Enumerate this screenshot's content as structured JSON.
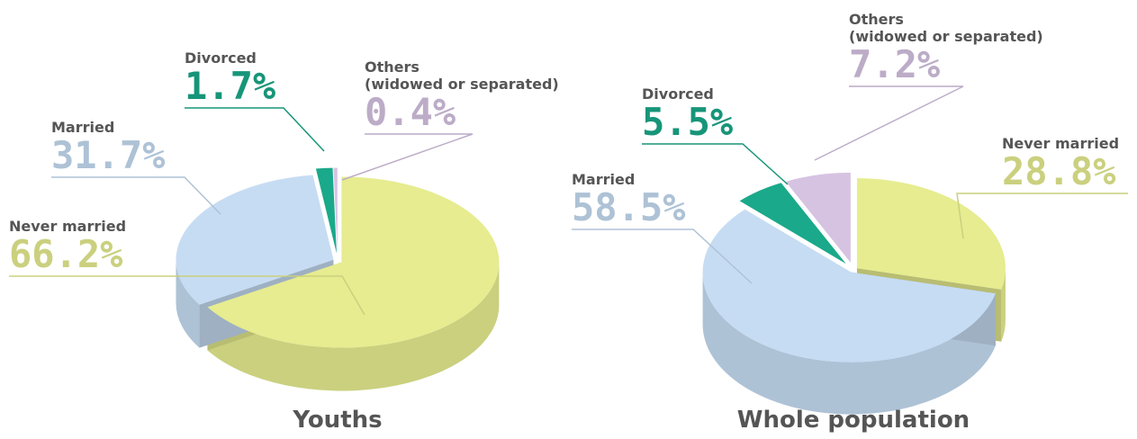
{
  "chart_data": [
    {
      "type": "pie",
      "title": "Youths",
      "categories": [
        "Never married",
        "Married",
        "Divorced",
        "Others\n(widowed or separated)"
      ],
      "values": [
        66.2,
        31.7,
        1.7,
        0.4
      ],
      "value_labels": [
        "66.2%",
        "31.7%",
        "1.7%",
        "0.4%"
      ],
      "colors": [
        "#e6ec8f",
        "#c6dcf3",
        "#1aa98a",
        "#d6c3e2"
      ]
    },
    {
      "type": "pie",
      "title": "Whole population",
      "categories": [
        "Never married",
        "Married",
        "Divorced",
        "Others\n(widowed or separated)"
      ],
      "values": [
        28.8,
        58.5,
        5.5,
        7.2
      ],
      "value_labels": [
        "28.8%",
        "58.5%",
        "5.5%",
        "7.2%"
      ],
      "colors": [
        "#e6ec8f",
        "#c6dcf3",
        "#1aa98a",
        "#d6c3e2"
      ]
    }
  ]
}
